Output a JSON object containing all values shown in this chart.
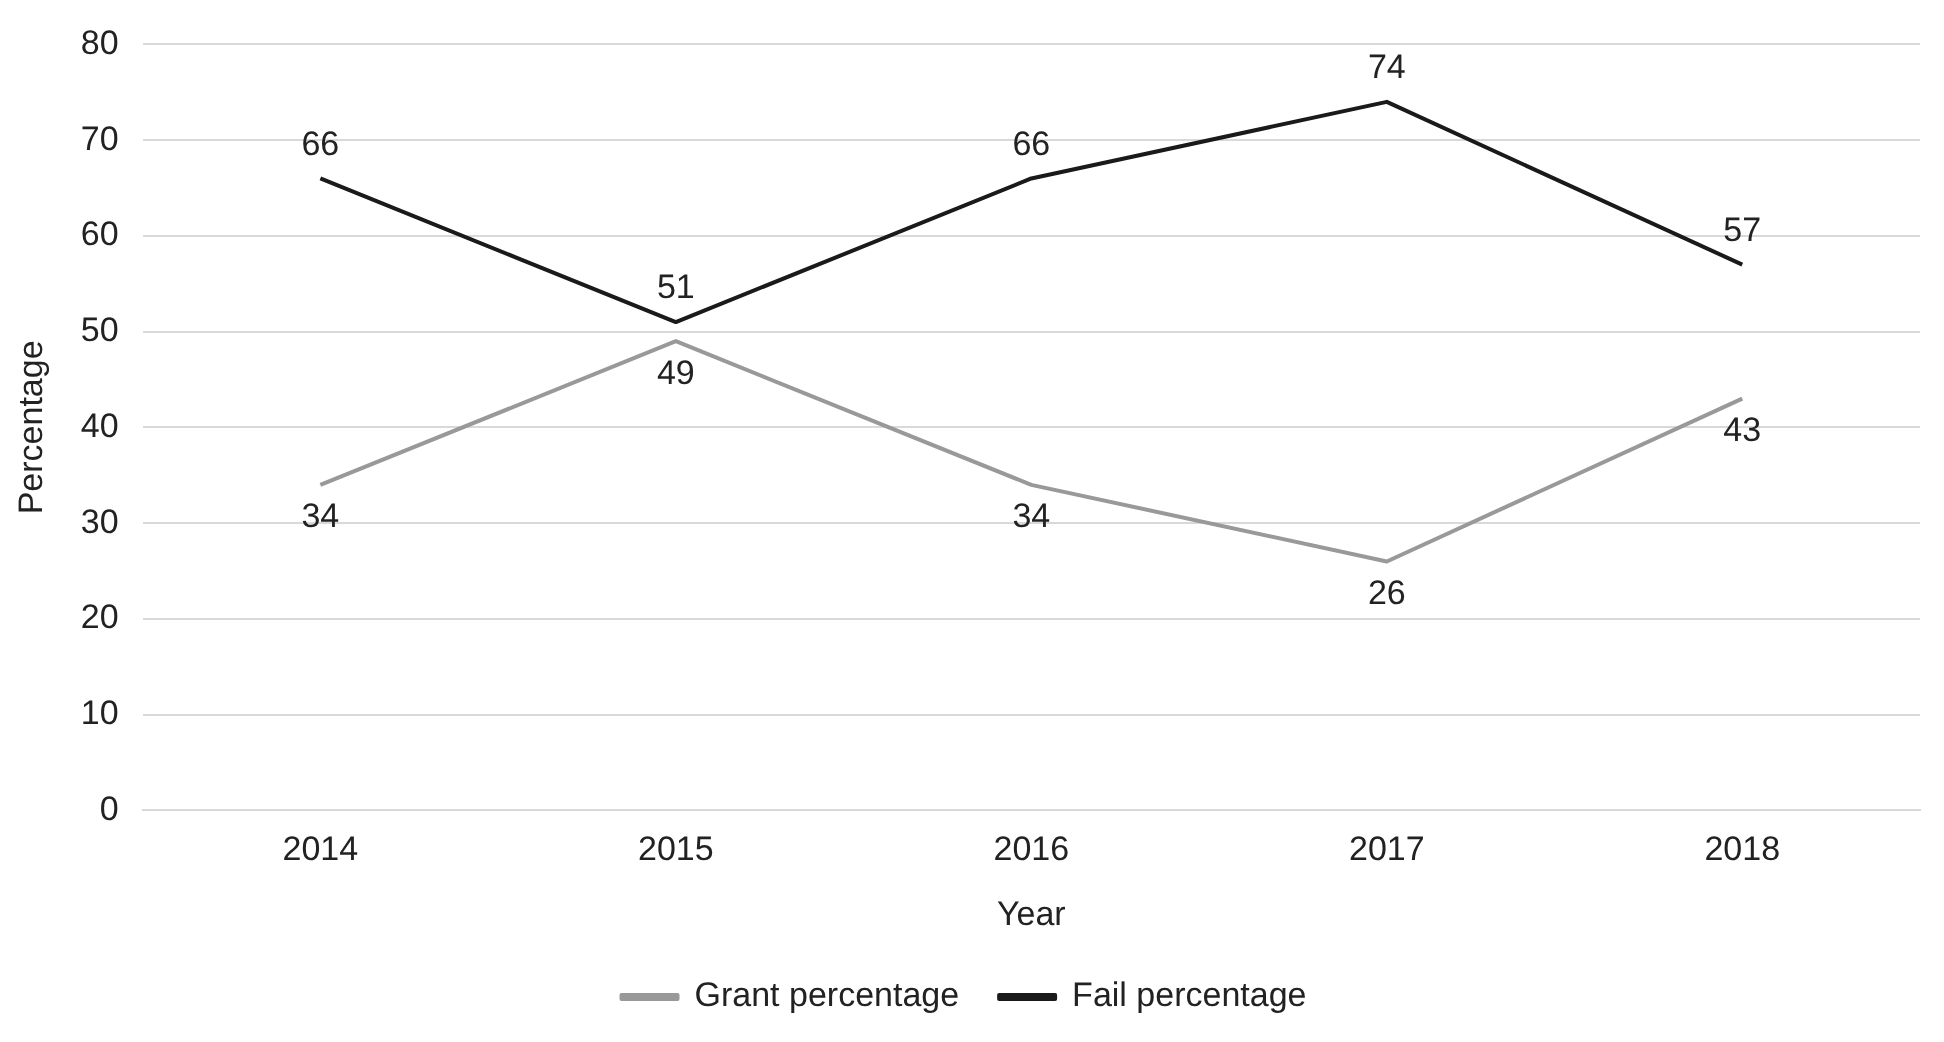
{
  "chart_data": {
    "type": "line",
    "xlabel": "Year",
    "ylabel": "Percentage",
    "categories": [
      "2014",
      "2015",
      "2016",
      "2017",
      "2018"
    ],
    "series": [
      {
        "name": "Grant percentage",
        "color": "#999999",
        "values": [
          34,
          49,
          34,
          26,
          43
        ]
      },
      {
        "name": "Fail percentage",
        "color": "#1a1a1a",
        "values": [
          66,
          51,
          66,
          74,
          57
        ]
      }
    ],
    "ylim": [
      0,
      80
    ],
    "yticks": [
      0,
      10,
      20,
      30,
      40,
      50,
      60,
      70,
      80
    ],
    "grid": "y",
    "legend": "bottom",
    "data_labels": true
  }
}
